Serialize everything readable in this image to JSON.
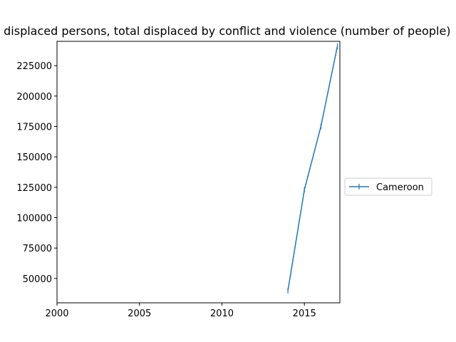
{
  "chart_data": {
    "type": "line",
    "title": "Internally displaced persons, total displaced by conflict and violence (number of people)",
    "xlabel": "",
    "ylabel": "",
    "xlim": [
      2000,
      2017.15
    ],
    "ylim": [
      30000,
      245000
    ],
    "x_ticks": [
      2000,
      2005,
      2010,
      2015
    ],
    "y_ticks": [
      50000,
      75000,
      100000,
      125000,
      150000,
      175000,
      200000,
      225000
    ],
    "grid": false,
    "legend_position": "right",
    "series": [
      {
        "name": "Cameroon",
        "color": "#1f77b4",
        "marker": "|",
        "x": [
          2014,
          2015,
          2016,
          2017
        ],
        "y": [
          40000,
          123000,
          175000,
          241000
        ]
      }
    ]
  }
}
